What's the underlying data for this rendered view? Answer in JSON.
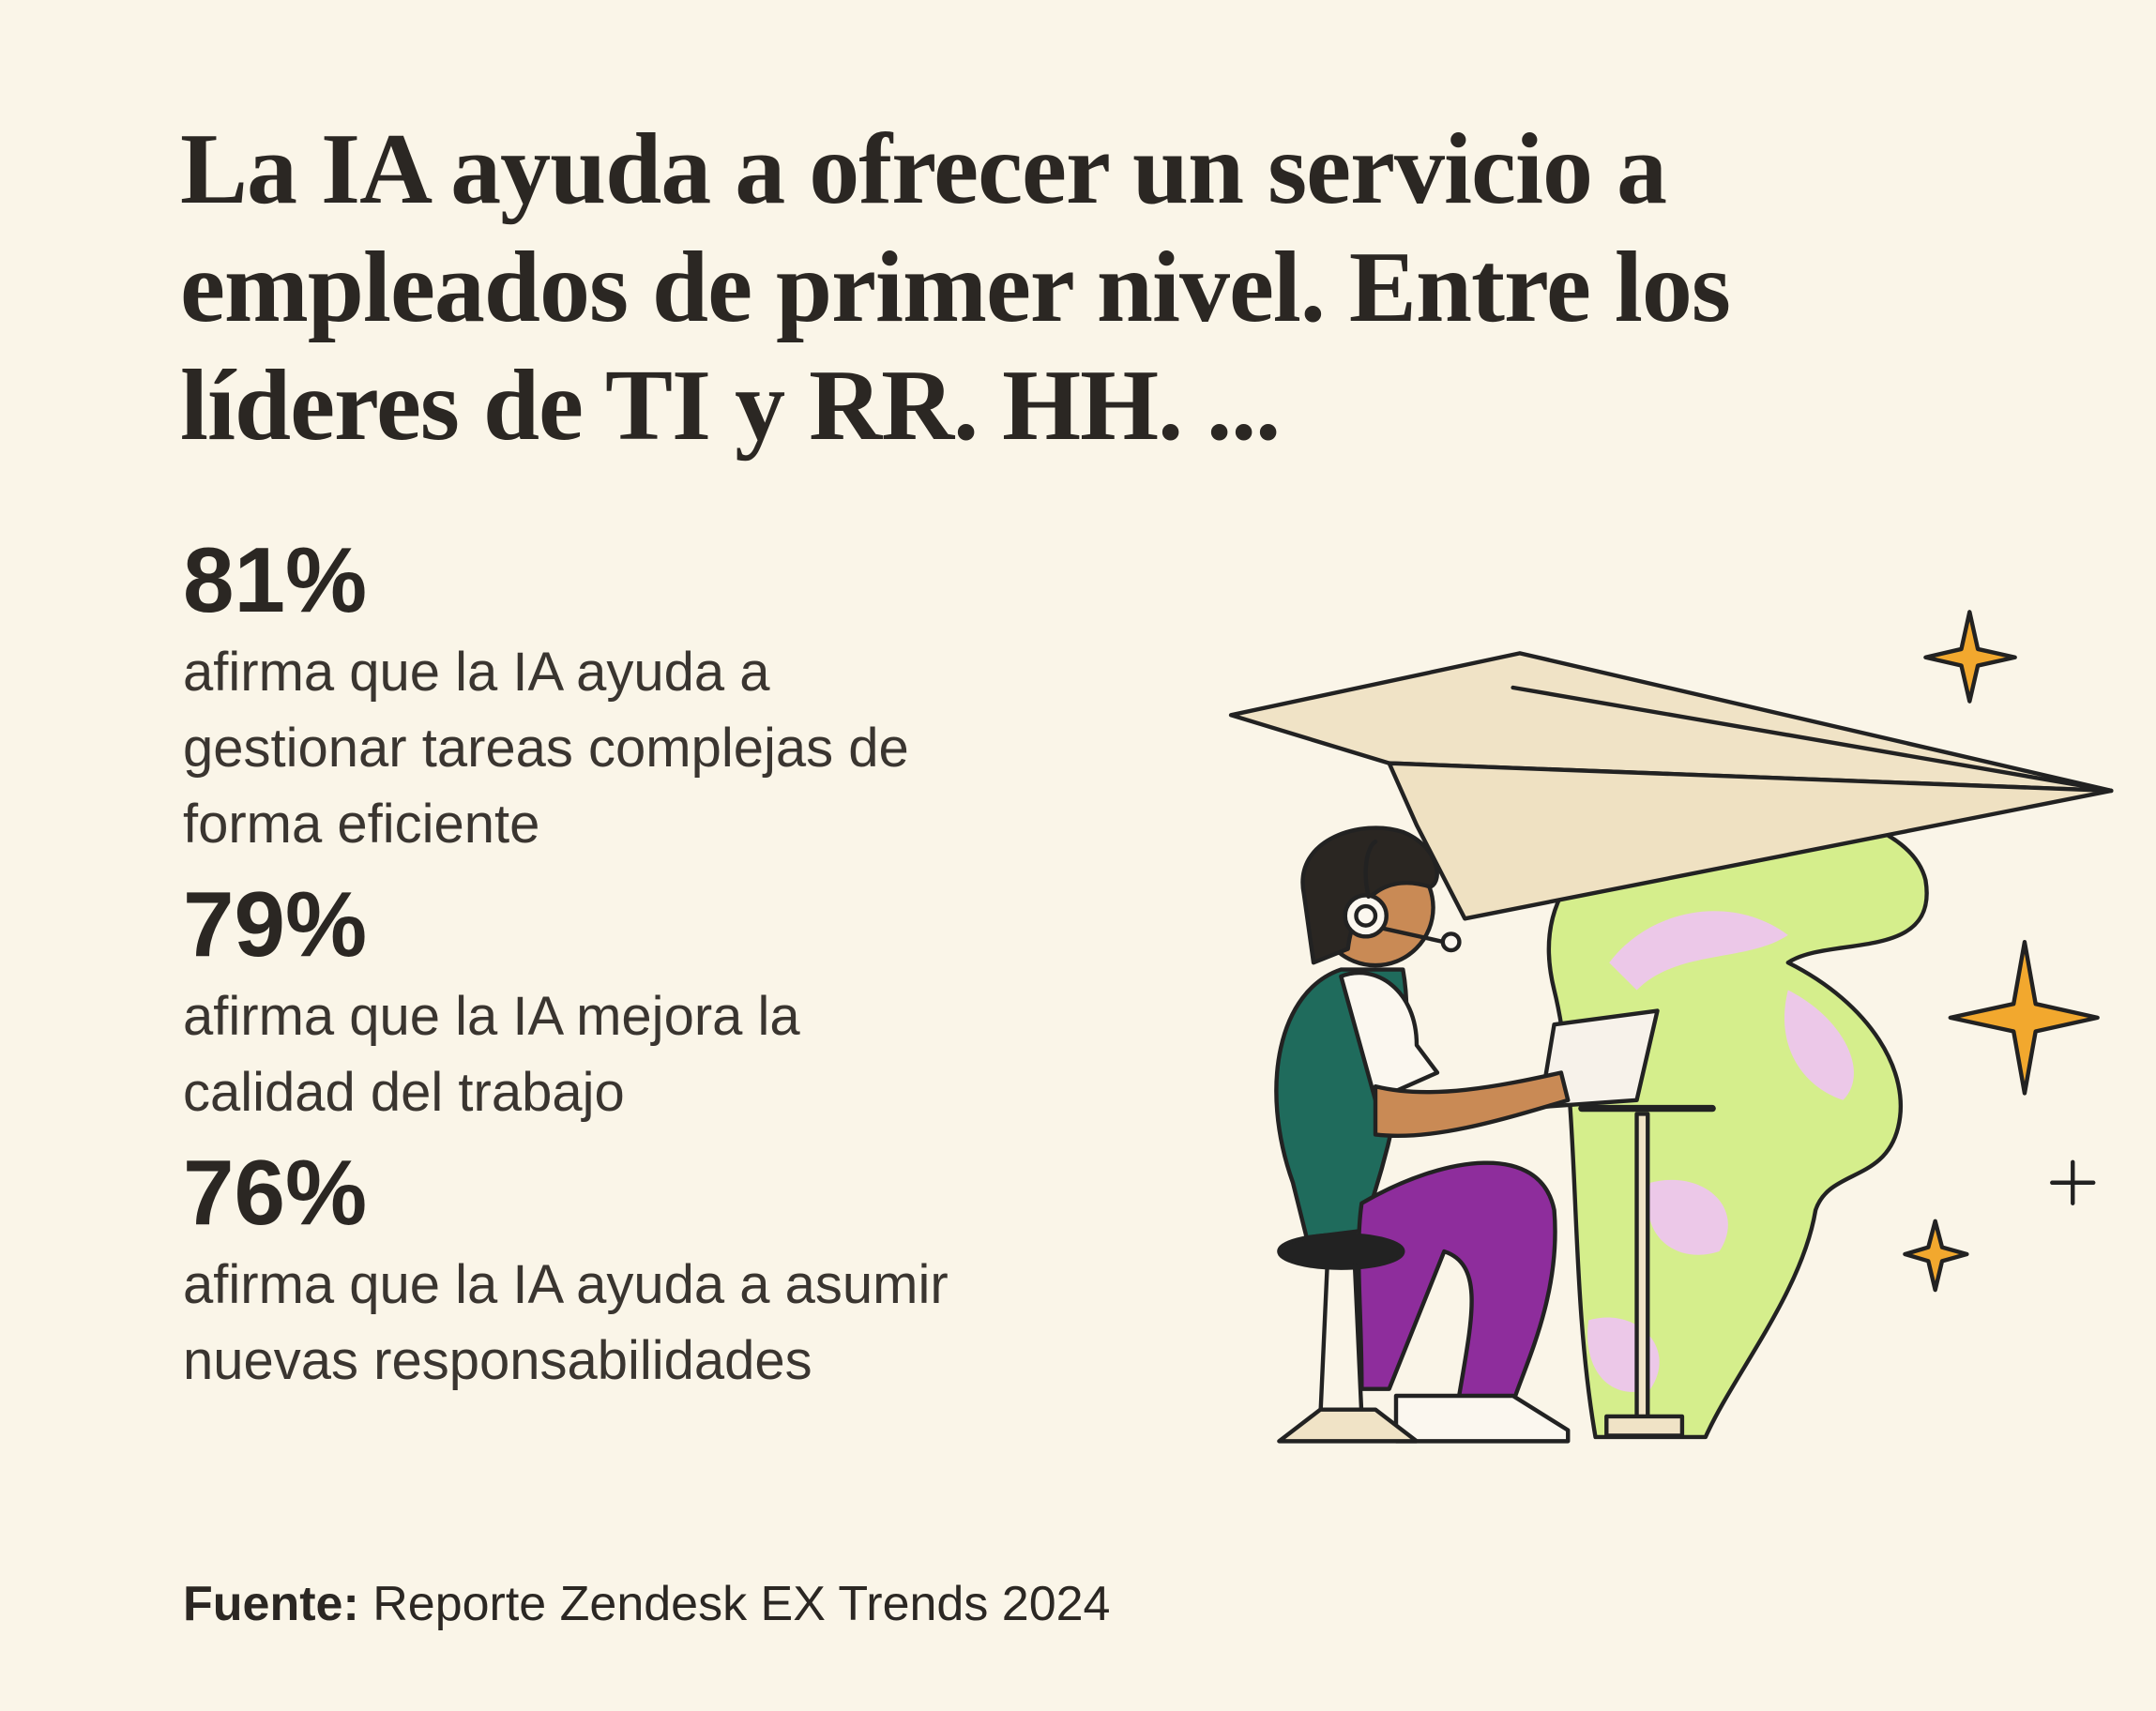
{
  "title": {
    "lines": [
      "La IA ayuda a ofrecer un servicio a",
      "empleados de primer nivel. Entre los",
      "líderes de TI y RR. HH. ..."
    ]
  },
  "stats": [
    {
      "value": "81%",
      "lines": [
        "afirma que la IA ayuda a",
        "gestionar tareas complejas de",
        "forma eficiente"
      ]
    },
    {
      "value": "79%",
      "lines": [
        "afirma que la IA mejora la",
        "calidad del trabajo"
      ]
    },
    {
      "value": "76%",
      "lines": [
        "afirma que la IA ayuda a asumir",
        "nuevas responsabilidades"
      ]
    }
  ],
  "source": {
    "label": "Fuente:",
    "text": "Reporte Zendesk EX Trends 2024"
  }
}
